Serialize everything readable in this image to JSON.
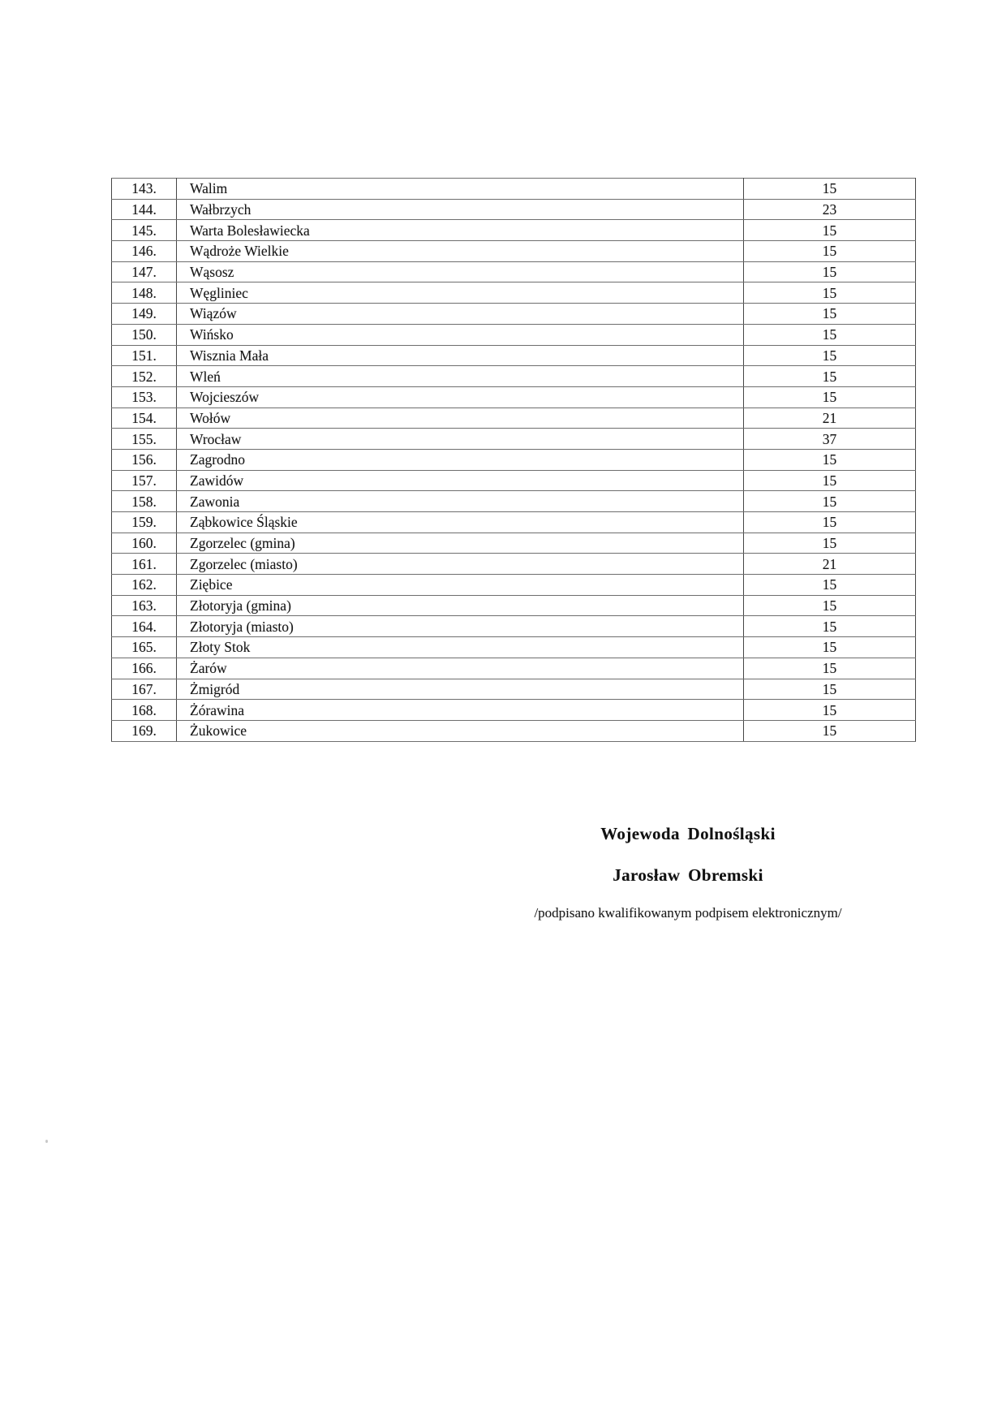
{
  "table": {
    "rows": [
      {
        "no": "143.",
        "name": "Walim",
        "value": "15"
      },
      {
        "no": "144.",
        "name": "Wałbrzych",
        "value": "23"
      },
      {
        "no": "145.",
        "name": "Warta Bolesławiecka",
        "value": "15"
      },
      {
        "no": "146.",
        "name": "Wądroże Wielkie",
        "value": "15"
      },
      {
        "no": "147.",
        "name": "Wąsosz",
        "value": "15"
      },
      {
        "no": "148.",
        "name": "Węgliniec",
        "value": "15"
      },
      {
        "no": "149.",
        "name": "Wiązów",
        "value": "15"
      },
      {
        "no": "150.",
        "name": "Wińsko",
        "value": "15"
      },
      {
        "no": "151.",
        "name": "Wisznia Mała",
        "value": "15"
      },
      {
        "no": "152.",
        "name": "Wleń",
        "value": "15"
      },
      {
        "no": "153.",
        "name": "Wojcieszów",
        "value": "15"
      },
      {
        "no": "154.",
        "name": "Wołów",
        "value": "21"
      },
      {
        "no": "155.",
        "name": "Wrocław",
        "value": "37"
      },
      {
        "no": "156.",
        "name": "Zagrodno",
        "value": "15"
      },
      {
        "no": "157.",
        "name": "Zawidów",
        "value": "15"
      },
      {
        "no": "158.",
        "name": "Zawonia",
        "value": "15"
      },
      {
        "no": "159.",
        "name": "Ząbkowice Śląskie",
        "value": "15"
      },
      {
        "no": "160.",
        "name": "Zgorzelec (gmina)",
        "value": "15"
      },
      {
        "no": "161.",
        "name": "Zgorzelec (miasto)",
        "value": "21"
      },
      {
        "no": "162.",
        "name": "Ziębice",
        "value": "15"
      },
      {
        "no": "163.",
        "name": "Złotoryja (gmina)",
        "value": "15"
      },
      {
        "no": "164.",
        "name": "Złotoryja (miasto)",
        "value": "15"
      },
      {
        "no": "165.",
        "name": "Złoty Stok",
        "value": "15"
      },
      {
        "no": "166.",
        "name": "Żarów",
        "value": "15"
      },
      {
        "no": "167.",
        "name": "Żmigród",
        "value": "15"
      },
      {
        "no": "168.",
        "name": "Żórawina",
        "value": "15"
      },
      {
        "no": "169.",
        "name": "Żukowice",
        "value": "15"
      }
    ]
  },
  "signature": {
    "title": "Wojewoda Dolnośląski",
    "name": "Jarosław Obremski",
    "note": "/podpisano kwalifikowanym podpisem elektronicznym/"
  }
}
